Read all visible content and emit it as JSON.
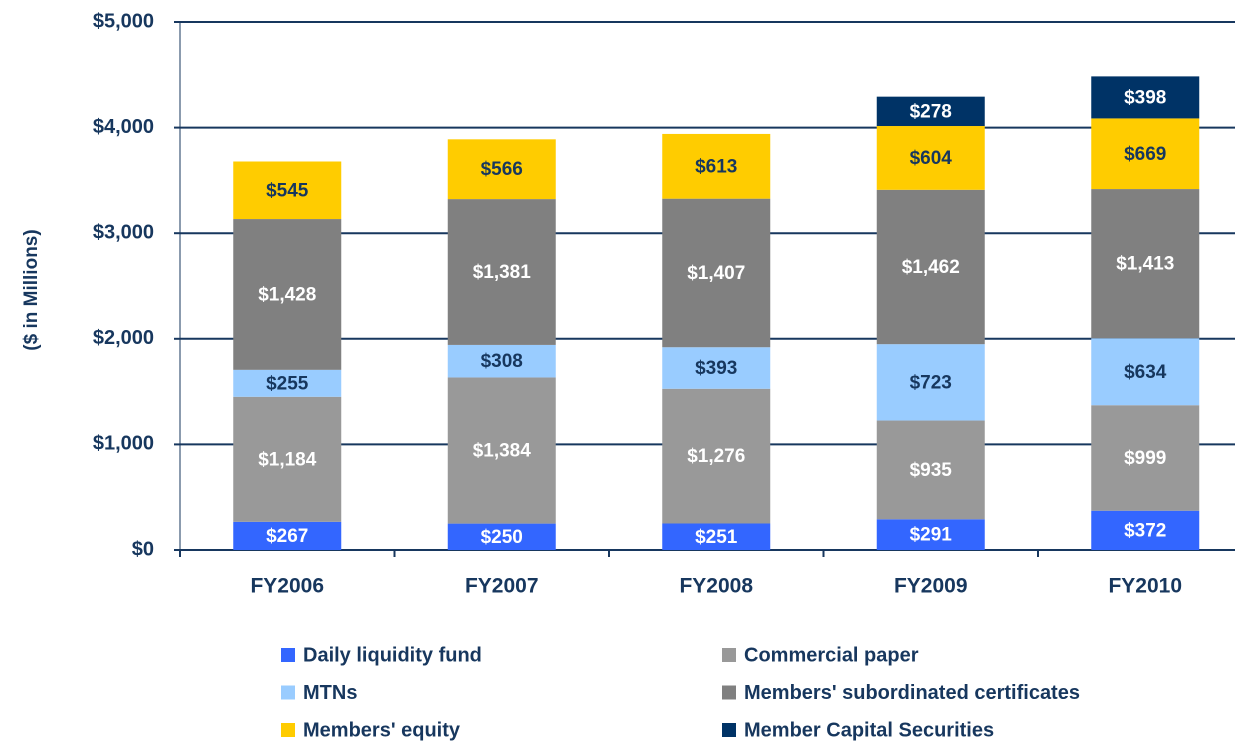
{
  "chart_data": {
    "type": "stacked_bar",
    "y_label": "($ in Millions)",
    "categories": [
      "FY2006",
      "FY2007",
      "FY2008",
      "FY2009",
      "FY2010"
    ],
    "series": [
      {
        "name": "Daily liquidity fund",
        "color": "#3366ff",
        "values": [
          267,
          250,
          251,
          291,
          372
        ],
        "value_labels": [
          "$267",
          "$250",
          "$251",
          "$291",
          "$372"
        ]
      },
      {
        "name": "Commercial paper",
        "color": "#999999",
        "values": [
          1184,
          1384,
          1276,
          935,
          999
        ],
        "value_labels": [
          "$1,184",
          "$1,384",
          "$1,276",
          "$935",
          "$999"
        ]
      },
      {
        "name": "MTNs",
        "color": "#99ccff",
        "values": [
          255,
          308,
          393,
          723,
          634
        ],
        "value_labels": [
          "$255",
          "$308",
          "$393",
          "$723",
          "$634"
        ]
      },
      {
        "name": "Members' subordinated certificates",
        "color": "#808080",
        "values": [
          1428,
          1381,
          1407,
          1462,
          1413
        ],
        "value_labels": [
          "$1,428",
          "$1,381",
          "$1,407",
          "$1,462",
          "$1,413"
        ]
      },
      {
        "name": "Members' equity",
        "color": "#ffcc00",
        "values": [
          545,
          566,
          613,
          604,
          669
        ],
        "value_labels": [
          "$545",
          "$566",
          "$613",
          "$604",
          "$669"
        ]
      },
      {
        "name": "Member Capital Securities",
        "color": "#003366",
        "values": [
          null,
          null,
          null,
          278,
          398
        ],
        "value_labels": [
          null,
          null,
          null,
          "$278",
          "$398"
        ]
      }
    ],
    "ylim": [
      0,
      5000
    ],
    "yticks": [
      {
        "value": 0,
        "label": "$0"
      },
      {
        "value": 1000,
        "label": "$1,000"
      },
      {
        "value": 2000,
        "label": "$2,000"
      },
      {
        "value": 3000,
        "label": "$3,000"
      },
      {
        "value": 4000,
        "label": "$4,000"
      },
      {
        "value": 5000,
        "label": "$5,000"
      }
    ],
    "grid": true,
    "legend": "bottom"
  }
}
